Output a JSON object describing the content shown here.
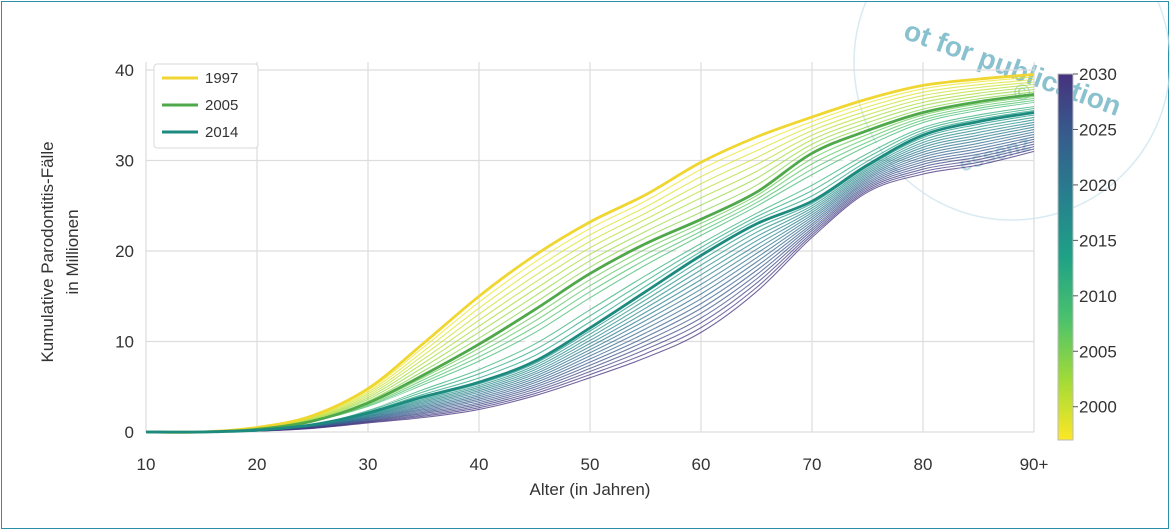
{
  "chart_data": {
    "type": "line",
    "xlabel": "Alter (in Jahren)",
    "ylabel_lines": [
      "Kumulative Parodontitis-Fälle",
      "in Millionen"
    ],
    "xlim": [
      10,
      90
    ],
    "ylim": [
      0,
      40
    ],
    "x_ticks": [
      10,
      20,
      30,
      40,
      50,
      60,
      70,
      80,
      90
    ],
    "x_tick_labels": [
      "10",
      "20",
      "30",
      "40",
      "50",
      "60",
      "70",
      "80",
      "90+"
    ],
    "y_ticks": [
      0,
      10,
      20,
      30,
      40
    ],
    "grid": true,
    "legend_position": "top-left",
    "x": [
      10,
      15,
      20,
      25,
      30,
      35,
      40,
      45,
      50,
      55,
      60,
      65,
      70,
      75,
      80,
      85,
      90
    ],
    "series": [
      {
        "name": "1997",
        "color": "#f0d630",
        "values": [
          0,
          0,
          0.5,
          1.8,
          4.8,
          9.8,
          15,
          19.5,
          23.2,
          26.2,
          29.8,
          32.6,
          34.8,
          36.8,
          38.3,
          39,
          39.5
        ]
      },
      {
        "name": "2005",
        "color": "#4fa84a",
        "values": [
          0,
          0,
          0.3,
          1.2,
          3.2,
          6.3,
          9.7,
          13.5,
          17.5,
          20.8,
          23.5,
          26.5,
          30.8,
          33.3,
          35.3,
          36.5,
          37.3
        ]
      },
      {
        "name": "2014",
        "color": "#1d8a80",
        "values": [
          0,
          0,
          0.2,
          0.8,
          2.1,
          3.9,
          5.5,
          7.8,
          11.5,
          15.5,
          19.5,
          23,
          25.5,
          29.5,
          32.8,
          34.3,
          35.3
        ]
      },
      {
        "name": "",
        "color": "#6e4d92",
        "values": [
          0,
          0,
          0.1,
          0.4,
          1,
          1.6,
          2.5,
          4,
          6,
          8.2,
          11,
          15.5,
          21.5,
          26.5,
          28.5,
          29.5,
          31
        ]
      }
    ],
    "colorbar": {
      "min": 1997,
      "max": 2030,
      "ticks": [
        2000,
        2005,
        2010,
        2015,
        2020,
        2025,
        2030
      ],
      "stops": [
        "#fde725",
        "#a0da39",
        "#4ac16d",
        "#1fa187",
        "#277f8e",
        "#365c8d",
        "#46327e"
      ]
    }
  },
  "watermark": {
    "lines": [
      "not for publication",
      "© Quintessenz"
    ],
    "visible_text": [
      "ot for publication",
      "©",
      "essenz"
    ]
  }
}
